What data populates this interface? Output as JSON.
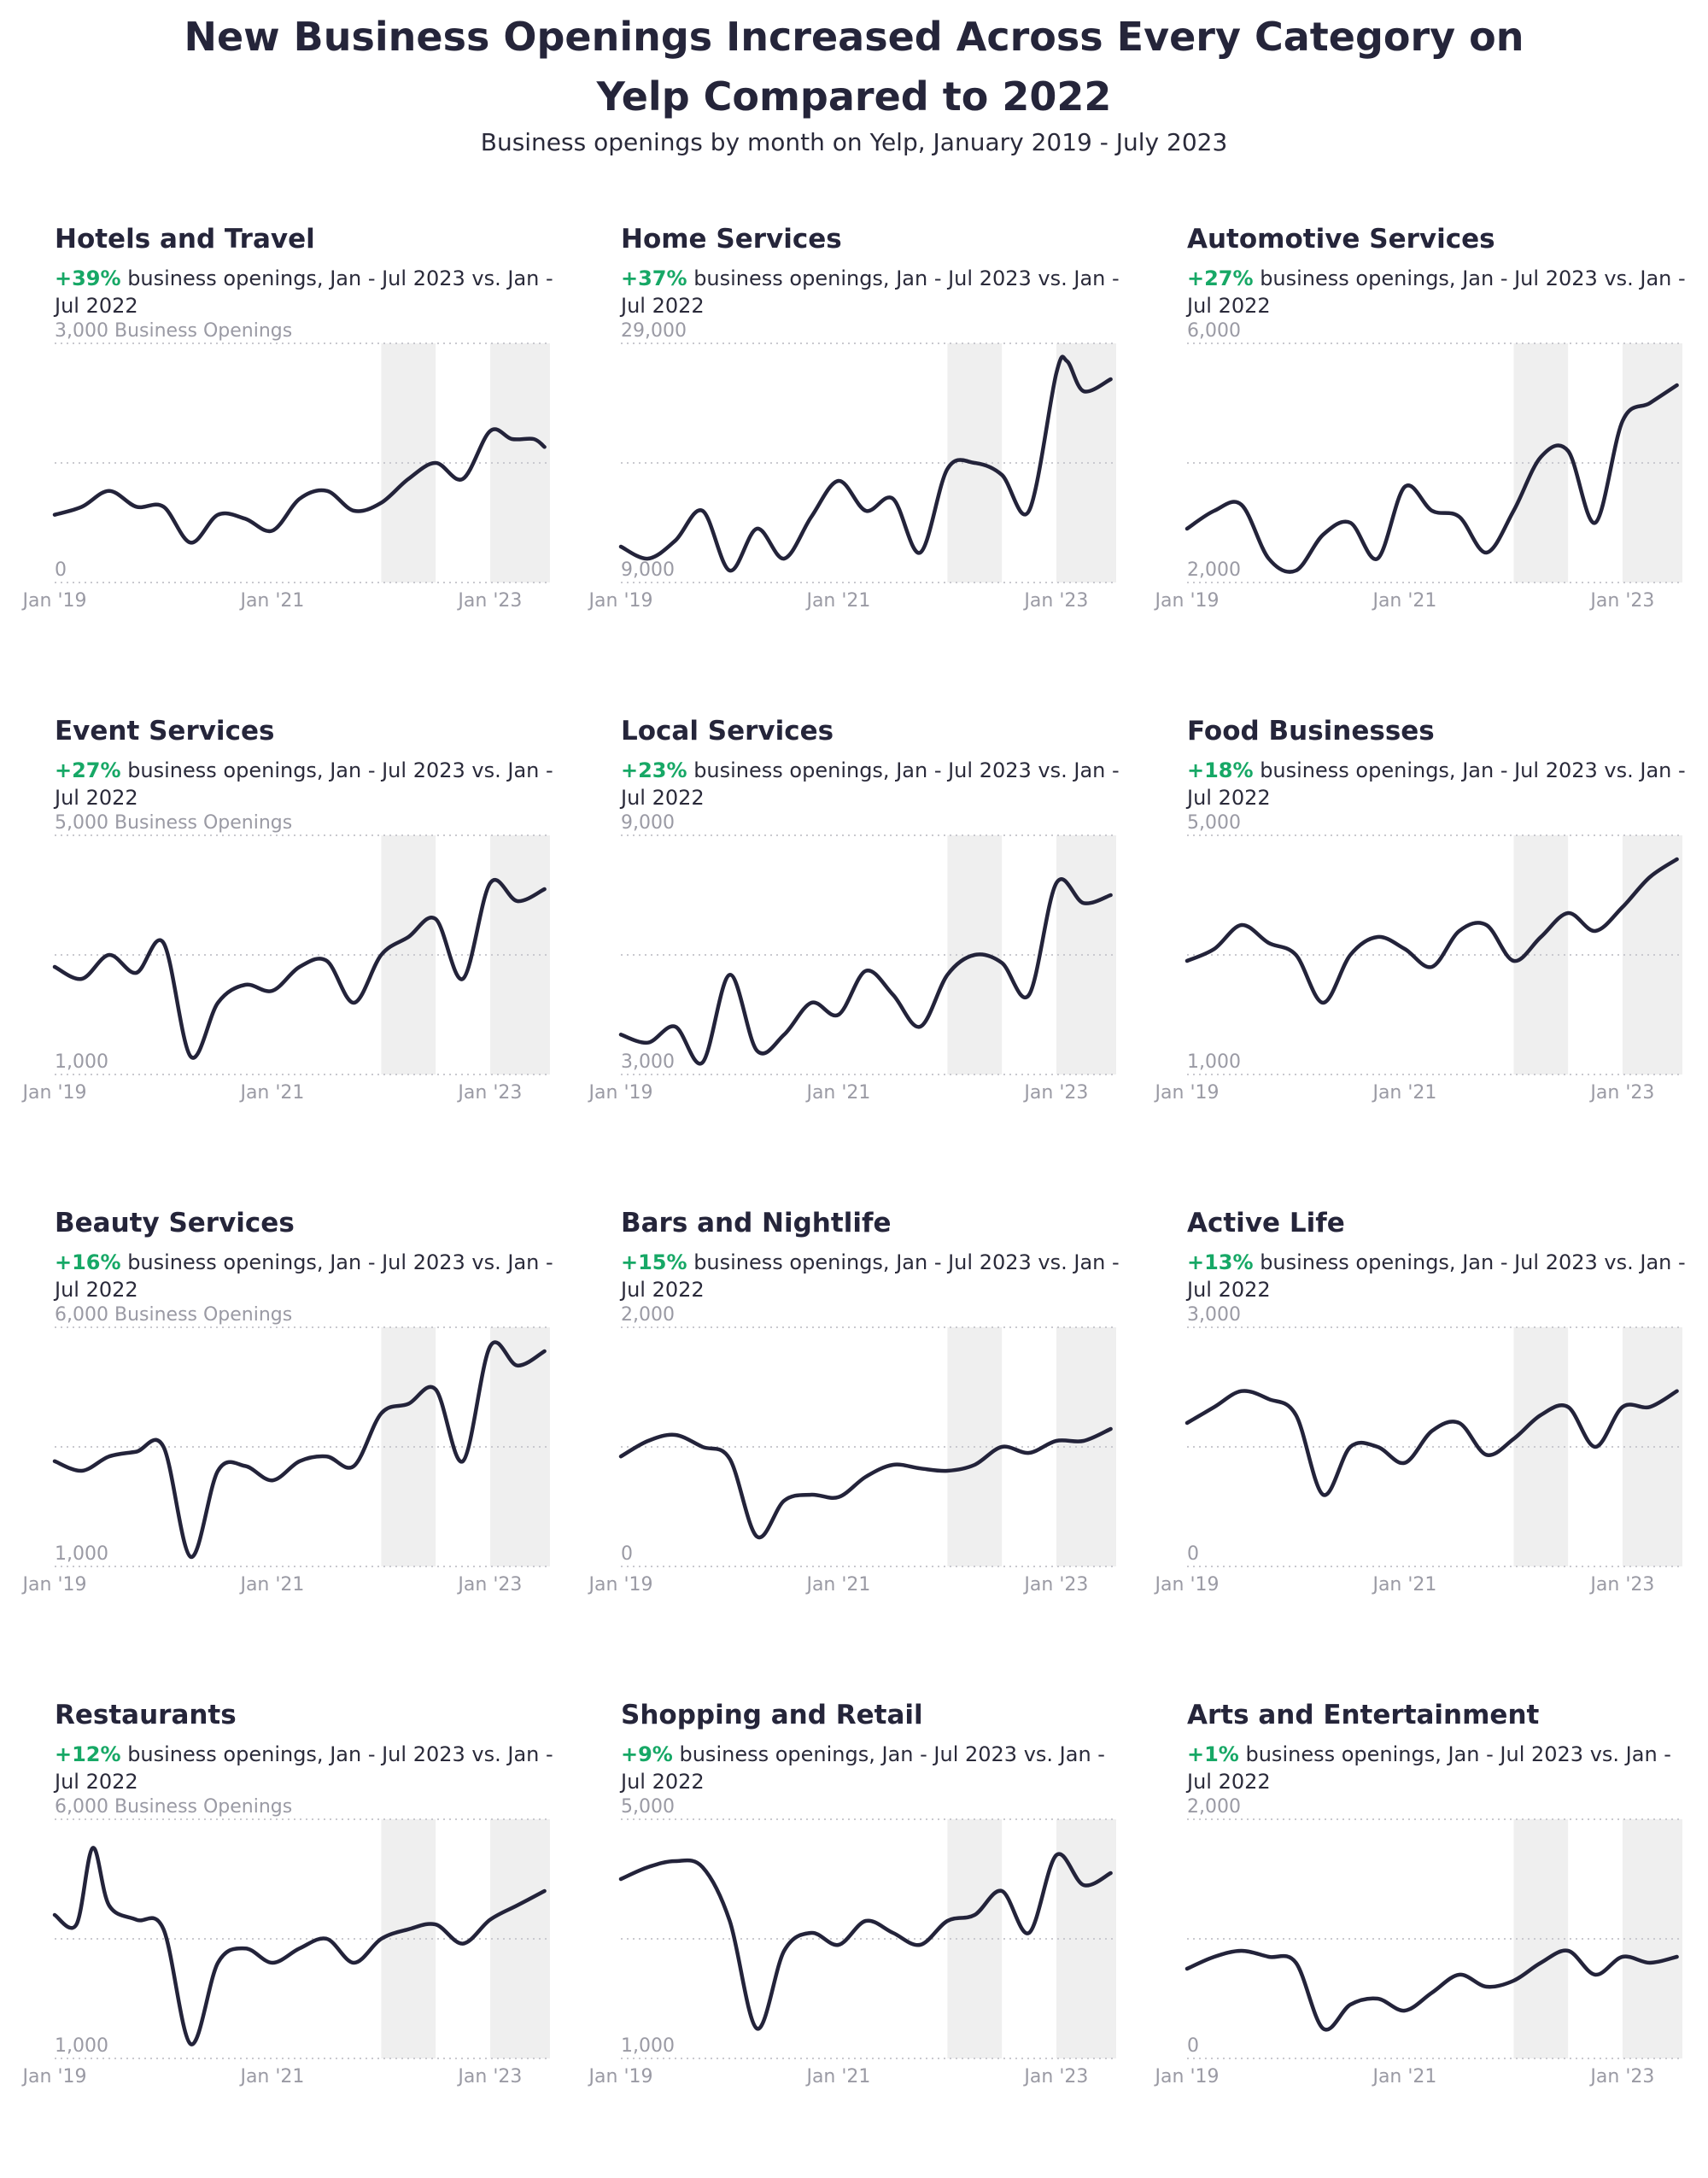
{
  "title_line1": "New Business Openings Increased Across Every Category on",
  "title_line2": "Yelp Compared to 2022",
  "subtitle": "Business openings by month on Yelp, January 2019 - July 2023",
  "desc_text": "business openings, Jan - Jul 2023 vs. Jan - Jul 2022",
  "colors": {
    "line": "#23233a",
    "positive": "#17a866",
    "shade": "#efefef",
    "grid": "#c9c9cf",
    "axis_text": "#9a9aa4"
  },
  "chart_data": [
    {
      "type": "line",
      "title": "Hotels and Travel",
      "change": "+39%",
      "ylim": [
        0,
        3000
      ],
      "y_tick_labels": [
        "3,000 Business Openings",
        "0"
      ],
      "x_tick_labels": [
        "Jan '19",
        "Jan '21",
        "Jan '23"
      ],
      "x": [
        2019.0,
        2019.25,
        2019.5,
        2019.75,
        2020.0,
        2020.25,
        2020.5,
        2020.75,
        2021.0,
        2021.25,
        2021.5,
        2021.75,
        2022.0,
        2022.25,
        2022.5,
        2022.75,
        2023.0,
        2023.2,
        2023.4,
        2023.5
      ],
      "values": [
        850,
        950,
        1150,
        950,
        950,
        500,
        850,
        800,
        650,
        1050,
        1150,
        900,
        1000,
        1300,
        1500,
        1300,
        1900,
        1800,
        1800,
        1700
      ]
    },
    {
      "type": "line",
      "title": "Home Services",
      "change": "+37%",
      "ylim": [
        9000,
        29000
      ],
      "y_tick_labels": [
        "29,000",
        "9,000"
      ],
      "x_tick_labels": [
        "Jan '19",
        "Jan '21",
        "Jan '23"
      ],
      "x": [
        2019.0,
        2019.25,
        2019.5,
        2019.75,
        2020.0,
        2020.25,
        2020.5,
        2020.75,
        2021.0,
        2021.25,
        2021.5,
        2021.75,
        2022.0,
        2022.25,
        2022.5,
        2022.75,
        2023.0,
        2023.1,
        2023.25,
        2023.5
      ],
      "values": [
        12000,
        11000,
        12500,
        15000,
        10000,
        13500,
        11000,
        14500,
        17500,
        15000,
        16000,
        11500,
        18500,
        19000,
        18000,
        15000,
        26500,
        27500,
        25000,
        26000
      ]
    },
    {
      "type": "line",
      "title": "Automotive Services",
      "change": "+27%",
      "ylim": [
        2000,
        6000
      ],
      "y_tick_labels": [
        "6,000",
        "2,000"
      ],
      "x_tick_labels": [
        "Jan '19",
        "Jan '21",
        "Jan '23"
      ],
      "x": [
        2019.0,
        2019.25,
        2019.5,
        2019.75,
        2020.0,
        2020.25,
        2020.5,
        2020.75,
        2021.0,
        2021.25,
        2021.5,
        2021.75,
        2022.0,
        2022.25,
        2022.5,
        2022.75,
        2023.0,
        2023.25,
        2023.5
      ],
      "values": [
        2900,
        3200,
        3300,
        2400,
        2200,
        2800,
        3000,
        2400,
        3600,
        3200,
        3100,
        2500,
        3200,
        4100,
        4200,
        3000,
        4700,
        5000,
        5300
      ]
    },
    {
      "type": "line",
      "title": "Event Services",
      "change": "+27%",
      "ylim": [
        1000,
        5000
      ],
      "y_tick_labels": [
        "5,000 Business Openings",
        "1,000"
      ],
      "x_tick_labels": [
        "Jan '19",
        "Jan '21",
        "Jan '23"
      ],
      "x": [
        2019.0,
        2019.25,
        2019.5,
        2019.75,
        2020.0,
        2020.25,
        2020.5,
        2020.75,
        2021.0,
        2021.25,
        2021.5,
        2021.75,
        2022.0,
        2022.25,
        2022.5,
        2022.75,
        2023.0,
        2023.25,
        2023.5
      ],
      "values": [
        2800,
        2600,
        3000,
        2700,
        3200,
        1300,
        2200,
        2500,
        2400,
        2800,
        2900,
        2200,
        3000,
        3300,
        3600,
        2600,
        4200,
        3900,
        4100
      ]
    },
    {
      "type": "line",
      "title": "Local Services",
      "change": "+23%",
      "ylim": [
        3000,
        9000
      ],
      "y_tick_labels": [
        "9,000",
        "3,000"
      ],
      "x_tick_labels": [
        "Jan '19",
        "Jan '21",
        "Jan '23"
      ],
      "x": [
        2019.0,
        2019.25,
        2019.5,
        2019.75,
        2020.0,
        2020.25,
        2020.5,
        2020.75,
        2021.0,
        2021.25,
        2021.5,
        2021.75,
        2022.0,
        2022.25,
        2022.5,
        2022.75,
        2023.0,
        2023.25,
        2023.5
      ],
      "values": [
        4000,
        3800,
        4200,
        3300,
        5500,
        3600,
        4000,
        4800,
        4500,
        5600,
        5000,
        4200,
        5500,
        6000,
        5800,
        5000,
        7800,
        7300,
        7500
      ]
    },
    {
      "type": "line",
      "title": "Food Businesses",
      "change": "+18%",
      "ylim": [
        1000,
        5000
      ],
      "y_tick_labels": [
        "5,000",
        "1,000"
      ],
      "x_tick_labels": [
        "Jan '19",
        "Jan '21",
        "Jan '23"
      ],
      "x": [
        2019.0,
        2019.25,
        2019.5,
        2019.75,
        2020.0,
        2020.25,
        2020.5,
        2020.75,
        2021.0,
        2021.25,
        2021.5,
        2021.75,
        2022.0,
        2022.25,
        2022.5,
        2022.75,
        2023.0,
        2023.25,
        2023.5
      ],
      "values": [
        2900,
        3100,
        3500,
        3200,
        3000,
        2200,
        3000,
        3300,
        3100,
        2800,
        3400,
        3500,
        2900,
        3300,
        3700,
        3400,
        3800,
        4300,
        4600
      ]
    },
    {
      "type": "line",
      "title": "Beauty Services",
      "change": "+16%",
      "ylim": [
        1000,
        6000
      ],
      "y_tick_labels": [
        "6,000 Business Openings",
        "1,000"
      ],
      "x_tick_labels": [
        "Jan '19",
        "Jan '21",
        "Jan '23"
      ],
      "x": [
        2019.0,
        2019.25,
        2019.5,
        2019.75,
        2020.0,
        2020.25,
        2020.5,
        2020.75,
        2021.0,
        2021.25,
        2021.5,
        2021.75,
        2022.0,
        2022.25,
        2022.5,
        2022.75,
        2023.0,
        2023.25,
        2023.5
      ],
      "values": [
        3200,
        3000,
        3300,
        3400,
        3500,
        1200,
        3000,
        3100,
        2800,
        3200,
        3300,
        3100,
        4200,
        4400,
        4700,
        3200,
        5600,
        5200,
        5500
      ]
    },
    {
      "type": "line",
      "title": "Bars and Nightlife",
      "change": "+15%",
      "ylim": [
        0,
        2000
      ],
      "y_tick_labels": [
        "2,000",
        "0"
      ],
      "x_tick_labels": [
        "Jan '19",
        "Jan '21",
        "Jan '23"
      ],
      "x": [
        2019.0,
        2019.25,
        2019.5,
        2019.75,
        2020.0,
        2020.25,
        2020.5,
        2020.75,
        2021.0,
        2021.25,
        2021.5,
        2021.75,
        2022.0,
        2022.25,
        2022.5,
        2022.75,
        2023.0,
        2023.25,
        2023.5
      ],
      "values": [
        920,
        1050,
        1100,
        1000,
        900,
        250,
        550,
        600,
        580,
        750,
        850,
        820,
        800,
        850,
        1000,
        950,
        1050,
        1050,
        1150
      ]
    },
    {
      "type": "line",
      "title": "Active Life",
      "change": "+13%",
      "ylim": [
        0,
        3000
      ],
      "y_tick_labels": [
        "3,000",
        "0"
      ],
      "x_tick_labels": [
        "Jan '19",
        "Jan '21",
        "Jan '23"
      ],
      "x": [
        2019.0,
        2019.25,
        2019.5,
        2019.75,
        2020.0,
        2020.25,
        2020.5,
        2020.75,
        2021.0,
        2021.25,
        2021.5,
        2021.75,
        2022.0,
        2022.25,
        2022.5,
        2022.75,
        2023.0,
        2023.25,
        2023.5
      ],
      "values": [
        1800,
        2000,
        2200,
        2100,
        1900,
        900,
        1500,
        1500,
        1300,
        1700,
        1800,
        1400,
        1600,
        1900,
        2000,
        1500,
        2000,
        2000,
        2200
      ]
    },
    {
      "type": "line",
      "title": "Restaurants",
      "change": "+12%",
      "ylim": [
        1000,
        6000
      ],
      "y_tick_labels": [
        "6,000 Business Openings",
        "1,000"
      ],
      "x_tick_labels": [
        "Jan '19",
        "Jan '21",
        "Jan '23"
      ],
      "x": [
        2019.0,
        2019.2,
        2019.35,
        2019.5,
        2019.75,
        2020.0,
        2020.25,
        2020.5,
        2020.75,
        2021.0,
        2021.25,
        2021.5,
        2021.75,
        2022.0,
        2022.25,
        2022.5,
        2022.75,
        2023.0,
        2023.25,
        2023.5
      ],
      "values": [
        4000,
        3800,
        5400,
        4200,
        3900,
        3700,
        1300,
        3000,
        3300,
        3000,
        3300,
        3500,
        3000,
        3500,
        3700,
        3800,
        3400,
        3900,
        4200,
        4500
      ]
    },
    {
      "type": "line",
      "title": "Shopping and Retail",
      "change": "+9%",
      "ylim": [
        1000,
        5000
      ],
      "y_tick_labels": [
        "5,000",
        "1,000"
      ],
      "x_tick_labels": [
        "Jan '19",
        "Jan '21",
        "Jan '23"
      ],
      "x": [
        2019.0,
        2019.25,
        2019.5,
        2019.75,
        2020.0,
        2020.25,
        2020.5,
        2020.75,
        2021.0,
        2021.25,
        2021.5,
        2021.75,
        2022.0,
        2022.25,
        2022.5,
        2022.75,
        2023.0,
        2023.25,
        2023.5
      ],
      "values": [
        4000,
        4200,
        4300,
        4200,
        3300,
        1500,
        2800,
        3100,
        2900,
        3300,
        3100,
        2900,
        3300,
        3400,
        3800,
        3100,
        4400,
        3900,
        4100
      ]
    },
    {
      "type": "line",
      "title": "Arts and Entertainment",
      "change": "+1%",
      "ylim": [
        0,
        2000
      ],
      "y_tick_labels": [
        "2,000",
        "0"
      ],
      "x_tick_labels": [
        "Jan '19",
        "Jan '21",
        "Jan '23"
      ],
      "x": [
        2019.0,
        2019.25,
        2019.5,
        2019.75,
        2020.0,
        2020.25,
        2020.5,
        2020.75,
        2021.0,
        2021.25,
        2021.5,
        2021.75,
        2022.0,
        2022.25,
        2022.5,
        2022.75,
        2023.0,
        2023.25,
        2023.5
      ],
      "values": [
        750,
        850,
        900,
        850,
        800,
        250,
        450,
        500,
        400,
        550,
        700,
        600,
        650,
        800,
        900,
        700,
        850,
        800,
        850
      ]
    }
  ]
}
